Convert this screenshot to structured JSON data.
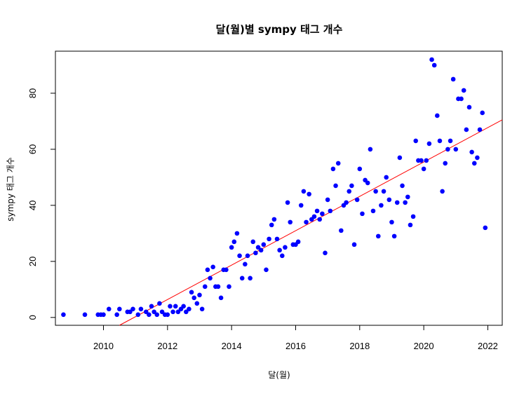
{
  "chart_data": {
    "type": "scatter",
    "title": "달(월)별 sympy 태그 개수",
    "xlabel": "달(월)",
    "ylabel": "sympy 태그 개수",
    "xlim": [
      2008.5,
      2022.45
    ],
    "ylim": [
      -2.8,
      95
    ],
    "x_ticks": [
      2010,
      2012,
      2014,
      2016,
      2018,
      2020,
      2022
    ],
    "y_ticks": [
      0,
      20,
      40,
      60,
      80
    ],
    "grid": false,
    "point_color": "#0000ff",
    "trend_line": {
      "color": "#ff0000",
      "start": [
        2010.5,
        -2.8
      ],
      "end": [
        2022.45,
        70.5
      ]
    },
    "points": [
      [
        2008.75,
        1
      ],
      [
        2009.42,
        1
      ],
      [
        2009.83,
        1
      ],
      [
        2009.92,
        1
      ],
      [
        2010.0,
        1
      ],
      [
        2010.17,
        3
      ],
      [
        2010.42,
        1
      ],
      [
        2010.5,
        3
      ],
      [
        2010.75,
        2
      ],
      [
        2010.83,
        2
      ],
      [
        2010.92,
        3
      ],
      [
        2011.08,
        1
      ],
      [
        2011.17,
        3
      ],
      [
        2011.33,
        2
      ],
      [
        2011.42,
        1
      ],
      [
        2011.5,
        4
      ],
      [
        2011.58,
        2
      ],
      [
        2011.67,
        1
      ],
      [
        2011.75,
        5
      ],
      [
        2011.83,
        2
      ],
      [
        2011.92,
        1
      ],
      [
        2012.0,
        1
      ],
      [
        2012.08,
        4
      ],
      [
        2012.17,
        2
      ],
      [
        2012.25,
        4
      ],
      [
        2012.33,
        2
      ],
      [
        2012.42,
        3
      ],
      [
        2012.5,
        4
      ],
      [
        2012.58,
        2
      ],
      [
        2012.67,
        3
      ],
      [
        2012.75,
        9
      ],
      [
        2012.83,
        7
      ],
      [
        2012.92,
        5
      ],
      [
        2013.0,
        8
      ],
      [
        2013.08,
        3
      ],
      [
        2013.17,
        11
      ],
      [
        2013.25,
        17
      ],
      [
        2013.33,
        14
      ],
      [
        2013.42,
        18
      ],
      [
        2013.5,
        11
      ],
      [
        2013.58,
        11
      ],
      [
        2013.67,
        7
      ],
      [
        2013.75,
        17
      ],
      [
        2013.83,
        17
      ],
      [
        2013.92,
        11
      ],
      [
        2014.0,
        25
      ],
      [
        2014.08,
        27
      ],
      [
        2014.17,
        30
      ],
      [
        2014.25,
        22
      ],
      [
        2014.33,
        14
      ],
      [
        2014.42,
        19
      ],
      [
        2014.5,
        22
      ],
      [
        2014.58,
        14
      ],
      [
        2014.67,
        27
      ],
      [
        2014.75,
        23
      ],
      [
        2014.83,
        25
      ],
      [
        2014.92,
        24
      ],
      [
        2015.0,
        26
      ],
      [
        2015.08,
        17
      ],
      [
        2015.17,
        28
      ],
      [
        2015.25,
        33
      ],
      [
        2015.33,
        35
      ],
      [
        2015.42,
        28
      ],
      [
        2015.5,
        24
      ],
      [
        2015.58,
        22
      ],
      [
        2015.67,
        25
      ],
      [
        2015.75,
        41
      ],
      [
        2015.83,
        34
      ],
      [
        2015.92,
        26
      ],
      [
        2016.0,
        26
      ],
      [
        2016.08,
        27
      ],
      [
        2016.17,
        40
      ],
      [
        2016.25,
        45
      ],
      [
        2016.33,
        34
      ],
      [
        2016.42,
        44
      ],
      [
        2016.5,
        35
      ],
      [
        2016.58,
        36
      ],
      [
        2016.67,
        38
      ],
      [
        2016.75,
        35
      ],
      [
        2016.83,
        37
      ],
      [
        2016.92,
        23
      ],
      [
        2017.0,
        42
      ],
      [
        2017.08,
        38
      ],
      [
        2017.17,
        53
      ],
      [
        2017.25,
        47
      ],
      [
        2017.33,
        55
      ],
      [
        2017.42,
        31
      ],
      [
        2017.5,
        40
      ],
      [
        2017.58,
        41
      ],
      [
        2017.67,
        45
      ],
      [
        2017.75,
        47
      ],
      [
        2017.83,
        26
      ],
      [
        2017.92,
        42
      ],
      [
        2018.0,
        53
      ],
      [
        2018.08,
        37
      ],
      [
        2018.17,
        49
      ],
      [
        2018.25,
        48
      ],
      [
        2018.33,
        60
      ],
      [
        2018.42,
        38
      ],
      [
        2018.5,
        45
      ],
      [
        2018.58,
        29
      ],
      [
        2018.67,
        40
      ],
      [
        2018.75,
        45
      ],
      [
        2018.83,
        50
      ],
      [
        2018.92,
        42
      ],
      [
        2019.0,
        34
      ],
      [
        2019.08,
        29
      ],
      [
        2019.17,
        41
      ],
      [
        2019.25,
        57
      ],
      [
        2019.33,
        47
      ],
      [
        2019.42,
        41
      ],
      [
        2019.5,
        43
      ],
      [
        2019.58,
        33
      ],
      [
        2019.67,
        36
      ],
      [
        2019.75,
        63
      ],
      [
        2019.83,
        56
      ],
      [
        2019.92,
        56
      ],
      [
        2020.0,
        53
      ],
      [
        2020.08,
        56
      ],
      [
        2020.17,
        62
      ],
      [
        2020.25,
        92
      ],
      [
        2020.33,
        90
      ],
      [
        2020.42,
        72
      ],
      [
        2020.5,
        63
      ],
      [
        2020.58,
        45
      ],
      [
        2020.67,
        55
      ],
      [
        2020.75,
        60
      ],
      [
        2020.83,
        63
      ],
      [
        2020.92,
        85
      ],
      [
        2021.0,
        60
      ],
      [
        2021.08,
        78
      ],
      [
        2021.17,
        78
      ],
      [
        2021.25,
        81
      ],
      [
        2021.33,
        67
      ],
      [
        2021.42,
        75
      ],
      [
        2021.5,
        59
      ],
      [
        2021.58,
        55
      ],
      [
        2021.67,
        57
      ],
      [
        2021.75,
        67
      ],
      [
        2021.83,
        73
      ],
      [
        2021.92,
        32
      ]
    ]
  }
}
